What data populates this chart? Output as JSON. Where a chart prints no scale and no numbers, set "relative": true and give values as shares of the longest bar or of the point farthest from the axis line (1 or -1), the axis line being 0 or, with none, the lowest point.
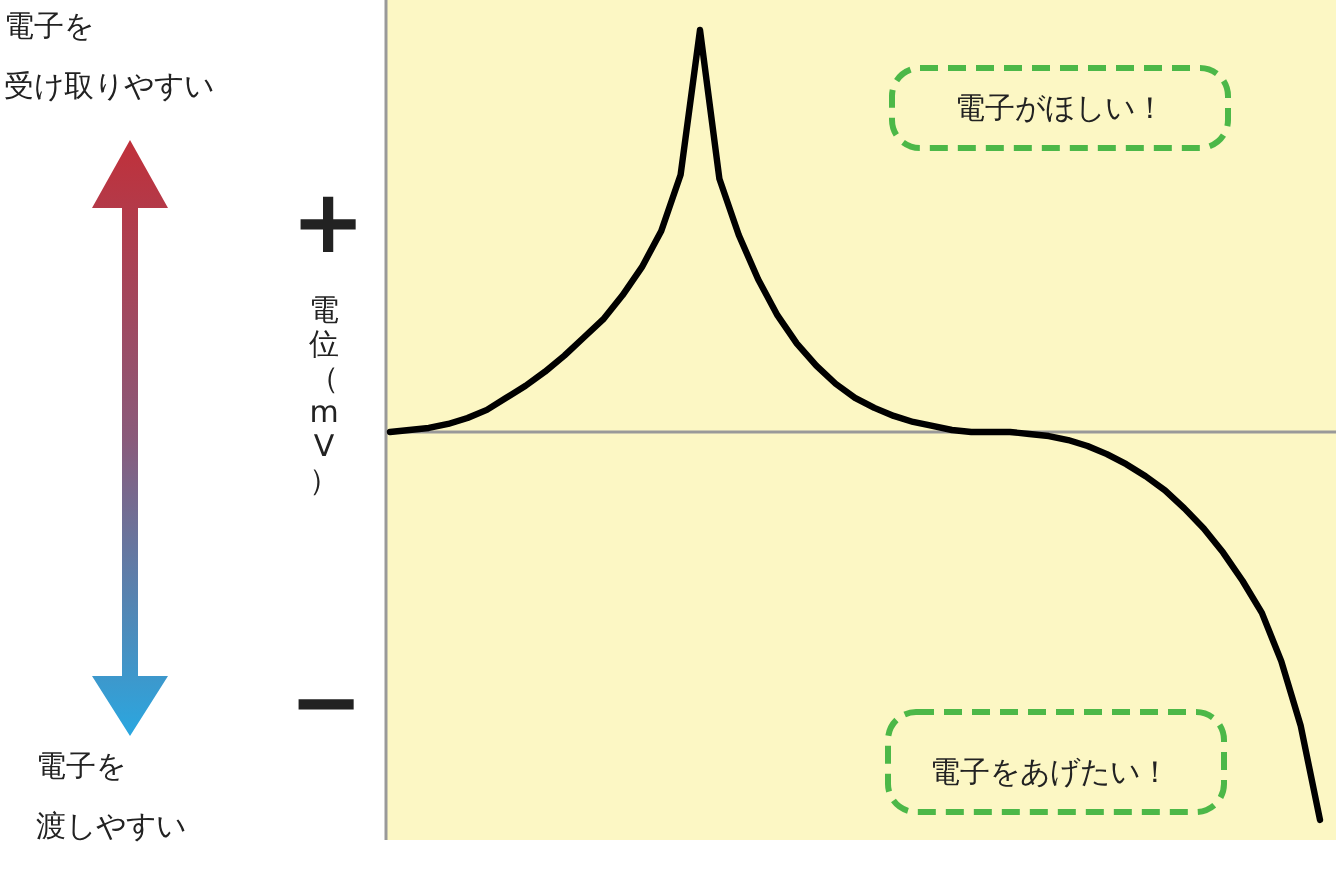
{
  "chart_data": {
    "type": "line",
    "relative": true,
    "ylabel": "電位（mV）",
    "annotations": [
      "電子を",
      "受け取りやすい",
      "電子を",
      "渡しやすい",
      "+",
      "−",
      "電子がほしい！",
      "電子をあげたい！"
    ],
    "categories": [
      null,
      null,
      null,
      null,
      null,
      null,
      null,
      null,
      null,
      null,
      null,
      null,
      null,
      null,
      null,
      null,
      null,
      null,
      null,
      null,
      null,
      null,
      null,
      null,
      null,
      null,
      null,
      null,
      null,
      null,
      null,
      null,
      null,
      null,
      null,
      null,
      null,
      null,
      null,
      null,
      null,
      null,
      null,
      null,
      null,
      null,
      null,
      null,
      null
    ],
    "series": [
      {
        "color": "#000000",
        "values": [
          0,
          0.005,
          0.01,
          0.02,
          0.035,
          0.055,
          0.085,
          0.115,
          0.15,
          0.19,
          0.235,
          0.28,
          0.34,
          0.41,
          0.5,
          0.64,
          1,
          0.63,
          0.49,
          0.38,
          0.29,
          0.22,
          0.165,
          0.12,
          0.085,
          0.06,
          0.04,
          0.025,
          0.015,
          0.005,
          0,
          0,
          0,
          -0.005,
          -0.01,
          -0.02,
          -0.035,
          -0.055,
          -0.08,
          -0.11,
          -0.145,
          -0.19,
          -0.24,
          -0.3,
          -0.37,
          -0.45,
          -0.57,
          -0.73,
          -0.965
        ]
      }
    ]
  }
}
